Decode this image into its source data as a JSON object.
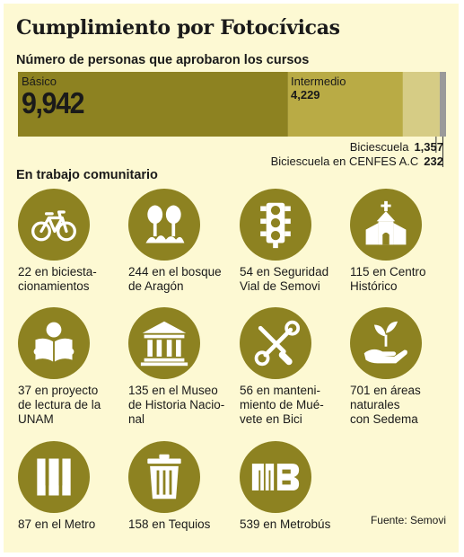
{
  "title": "Cumplimiento por Fotocívicas",
  "chart_data": {
    "type": "bar",
    "subtitle": "Número de personas que aprobaron los cursos",
    "series": [
      {
        "name": "Básico",
        "value": 9942,
        "value_label": "9,942",
        "color": "#8d8221"
      },
      {
        "name": "Intermedio",
        "value": 4229,
        "value_label": "4,229",
        "color": "#b9ab45"
      },
      {
        "name": "Biciescuela",
        "value": 1357,
        "value_label": "1,357",
        "color": "#d6cc85"
      },
      {
        "name": "Biciescuela en CENFES A.C",
        "value": 232,
        "value_label": "232",
        "color": "#9a9a9a"
      }
    ]
  },
  "section_title": "En trabajo comunitario",
  "items": [
    {
      "icon": "bicycle-icon",
      "caption": "22 en biciesta-\ncionamientos"
    },
    {
      "icon": "trees-icon",
      "caption": "244 en el bosque\nde Aragón"
    },
    {
      "icon": "traffic-light-icon",
      "caption": "54 en Seguridad\nVial de Semovi"
    },
    {
      "icon": "church-icon",
      "caption": "115 en Centro\nHistórico"
    },
    {
      "icon": "reading-person-icon",
      "caption": "37 en proyecto\nde lectura de la\nUNAM"
    },
    {
      "icon": "museum-icon",
      "caption": "135 en el Museo\nde Historia Nacio-\nnal"
    },
    {
      "icon": "tools-icon",
      "caption": "56 en manteni-\nmiento de Mué-\nvete en Bici"
    },
    {
      "icon": "plant-hand-icon",
      "caption": "701 en áreas\nnaturales\ncon Sedema"
    },
    {
      "icon": "metro-logo-icon",
      "caption": "87 en el Metro"
    },
    {
      "icon": "trash-can-icon",
      "caption": "158 en Tequios"
    },
    {
      "icon": "metrobus-logo-icon",
      "caption": "539 en Metrobús"
    }
  ],
  "source": "Fuente: Semovi",
  "colors": {
    "icon_circle": "#8d8221",
    "background": "#fdf9d3"
  }
}
